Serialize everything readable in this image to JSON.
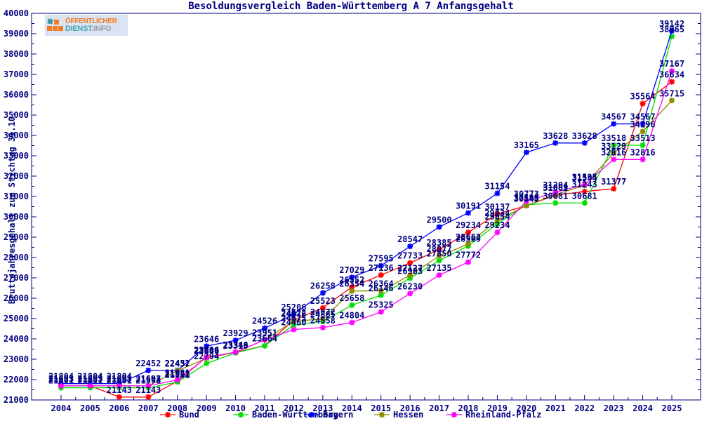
{
  "title": "Besoldungsvergleich Baden-Württemberg A 7 Anfangsgehalt",
  "ylabel": "Bruttojahresgehalt zum Stichtag 31.10.",
  "logo": {
    "line1": "ÖFFENTLICHER",
    "line2a": "DIENST",
    "line2b": ".INFO"
  },
  "colors": {
    "axis": "#000080",
    "text": "#000080",
    "point_label": "#000080",
    "background": "#ffffff"
  },
  "chart_data": {
    "type": "line",
    "title": "Besoldungsvergleich Baden-Württemberg A 7 Anfangsgehalt",
    "xlabel": "",
    "ylabel": "Bruttojahresgehalt zum Stichtag 31.10.",
    "x": [
      2004,
      2005,
      2006,
      2007,
      2008,
      2009,
      2010,
      2011,
      2012,
      2013,
      2014,
      2015,
      2016,
      2017,
      2018,
      2019,
      2020,
      2021,
      2022,
      2023,
      2024,
      2025
    ],
    "ylim": [
      21000,
      40000
    ],
    "ytick_step": 1000,
    "grid": false,
    "legend_position": "bottom",
    "point_labels_visible": true,
    "series": [
      {
        "name": "Bund",
        "color": "#ff0000",
        "values": [
          21693,
          21693,
          21143,
          21143,
          21922,
          23104,
          23346,
          23664,
          24922,
          25523,
          26552,
          27136,
          27733,
          28385,
          29234,
          30137,
          30543,
          31062,
          31243,
          31377,
          35564,
          36634
        ]
      },
      {
        "name": "Baden-Württemberg",
        "color": "#00dd00",
        "values": [
          21601,
          21601,
          21601,
          21598,
          21881,
          22794,
          23313,
          23664,
          24675,
          24865,
          25658,
          26146,
          26983,
          27850,
          28565,
          29654,
          30593,
          30681,
          30681,
          33518,
          33513,
          38865
        ]
      },
      {
        "name": "Bayern",
        "color": "#0000ff",
        "values": [
          21804,
          21804,
          21804,
          22452,
          22452,
          23646,
          23929,
          24526,
          25206,
          26258,
          27029,
          27595,
          28547,
          29500,
          30191,
          31154,
          33165,
          33628,
          33628,
          34567,
          34567,
          39142
        ]
      },
      {
        "name": "Hessen",
        "color": "#8b8b00",
        "values": [
          21693,
          21693,
          21693,
          21693,
          22437,
          23046,
          23346,
          23951,
          24876,
          24972,
          26354,
          26364,
          27127,
          28077,
          28663,
          29834,
          30549,
          31089,
          31544,
          33129,
          34196,
          35715
        ]
      },
      {
        "name": "Rheinland-Pfalz",
        "color": "#ff00ff",
        "values": [
          21693,
          21693,
          21693,
          21697,
          21981,
          23089,
          23346,
          23951,
          24460,
          24558,
          24804,
          25325,
          26230,
          27135,
          27772,
          29234,
          30773,
          31204,
          31595,
          32816,
          32816,
          37167
        ]
      }
    ]
  }
}
